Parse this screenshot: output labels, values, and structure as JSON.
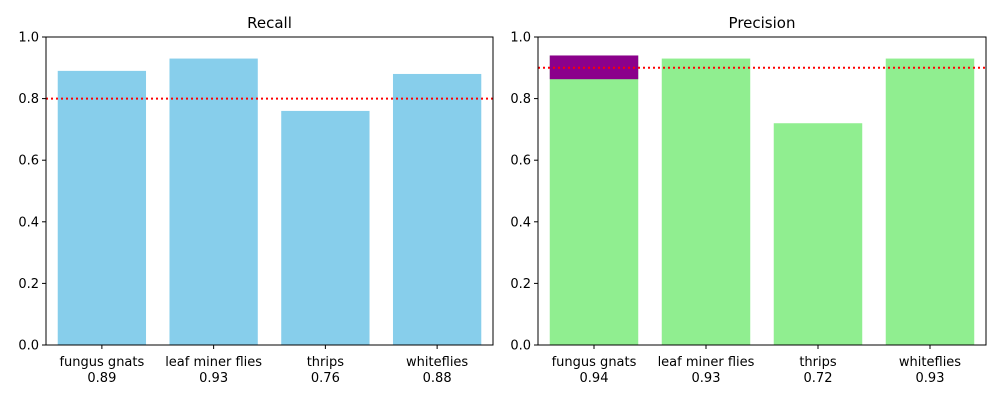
{
  "chart_data": [
    {
      "type": "bar",
      "title": "Recall",
      "categories": [
        "fungus gnats",
        "leaf miner flies",
        "thrips",
        "whiteflies"
      ],
      "value_labels": [
        "0.89",
        "0.93",
        "0.76",
        "0.88"
      ],
      "values": [
        0.89,
        0.93,
        0.76,
        0.88
      ],
      "ylim": [
        0,
        1.0
      ],
      "yticks": [
        "0.0",
        "0.2",
        "0.4",
        "0.6",
        "0.8",
        "1.0"
      ],
      "threshold": 0.8,
      "bar_color": "#87ceeb",
      "threshold_color": "#ff0000",
      "grid": false
    },
    {
      "type": "bar",
      "title": "Precision",
      "categories": [
        "fungus gnats",
        "leaf miner flies",
        "thrips",
        "whiteflies"
      ],
      "value_labels": [
        "0.94",
        "0.93",
        "0.72",
        "0.93"
      ],
      "values": [
        0.94,
        0.93,
        0.72,
        0.93
      ],
      "overlay_segment": {
        "category": "fungus gnats",
        "from": 0.863,
        "to": 0.94,
        "color": "#8b008b"
      },
      "ylim": [
        0,
        1.0
      ],
      "yticks": [
        "0.0",
        "0.2",
        "0.4",
        "0.6",
        "0.8",
        "1.0"
      ],
      "threshold": 0.9,
      "bar_color": "#90ee90",
      "threshold_color": "#ff0000",
      "grid": false
    }
  ]
}
